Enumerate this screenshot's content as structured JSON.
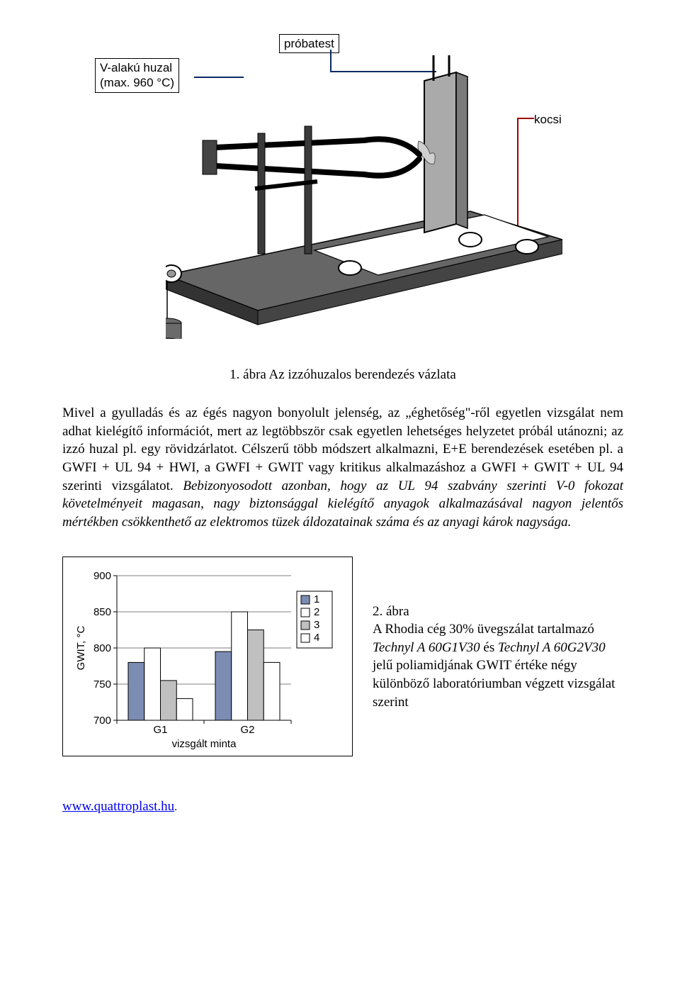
{
  "figure1": {
    "labels": {
      "wire": "V-alakú huzal\n(max. 960 °C)",
      "sample": "próbatest",
      "cart": "kocsi"
    },
    "caption": "1. ábra Az izzóhuzalos berendezés vázlata",
    "leader_color": "#0a2a64"
  },
  "paragraph": {
    "lead": "Mivel a gyulladás és az égés nagyon bonyolult jelenség, az „éghetőség\"-ről egyetlen vizsgálat nem adhat kielégítő információt, mert az legtöbbször csak egyetlen lehetséges helyzetet próbál utánozni; az izzó huzal pl. egy rövidzárlatot. Célszerű több módszert alkalmazni, E+E berendezések esetében pl. a GWFI + UL 94 + HWI, a GWFI + GWIT vagy kritikus alkalmazáshoz a GWFI + GWIT + UL 94 szerinti vizsgálatot. ",
    "italic_tail": "Bebizonyosodott azonban, hogy az UL 94 szabvány szerinti V-0 fokozat követelményeit magasan, nagy biztonsággal kielégítő anyagok alkalmazásával nagyon jelentős mértékben csökkenthető az elektromos tüzek áldozatainak száma és az anyagi károk nagysága."
  },
  "chart": {
    "type": "bar",
    "y_label": "GWIT, °C",
    "x_label": "vizsgált minta",
    "ylim": [
      700,
      900
    ],
    "ytick_step": 50,
    "categories": [
      "G1",
      "G2"
    ],
    "series": [
      {
        "name": "1",
        "color": "#7c8db3",
        "values": [
          780,
          795
        ]
      },
      {
        "name": "2",
        "color": "#ffffff",
        "values": [
          800,
          850
        ]
      },
      {
        "name": "3",
        "color": "#c0c0c0",
        "values": [
          755,
          825
        ]
      },
      {
        "name": "4",
        "color": "#ffffff",
        "values": [
          730,
          780
        ]
      }
    ],
    "bar_border": "#000000",
    "grid_color": "#000000",
    "background_color": "#ffffff",
    "label_fontsize": 15,
    "tick_fontsize": 15,
    "legend_border": "#000000"
  },
  "figure2_caption": {
    "line1": "2. ábra",
    "line2_plain1": "A Rhodia cég 30% üvegszálat tartalmazó ",
    "line2_italic1": "Technyl A 60G1V30",
    "line2_plain2": " és ",
    "line2_italic2": "Technyl A 60G2V30",
    "line2_plain3": " jelű poliamidjának GWIT értéke négy különböző laboratóriumban végzett vizsgálat szerint"
  },
  "footer": {
    "link_text": "www.quattroplast.hu",
    "trailing": "."
  }
}
